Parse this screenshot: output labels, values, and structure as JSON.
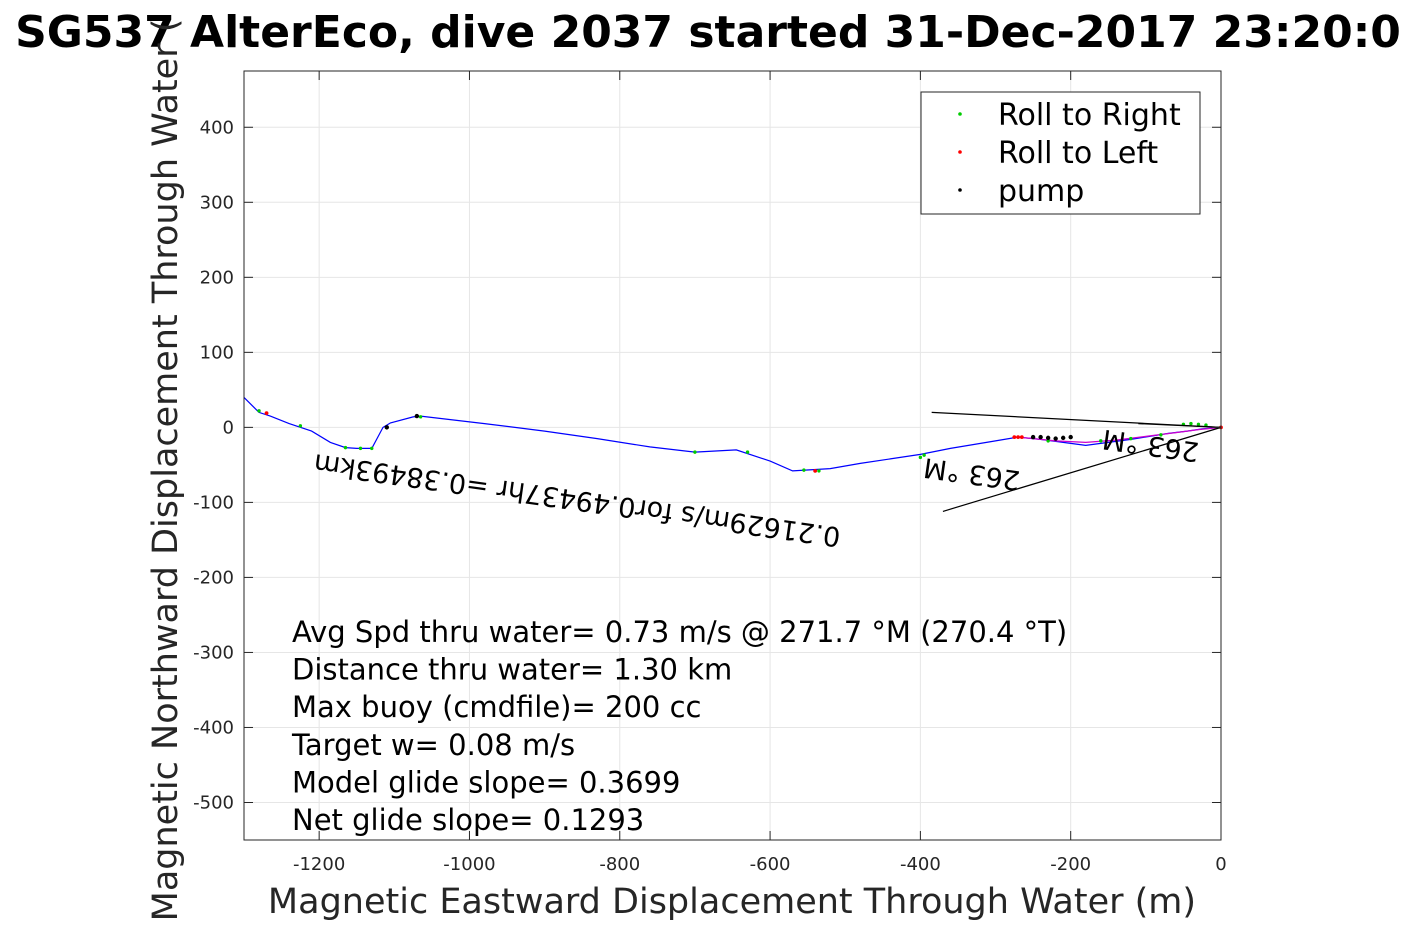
{
  "chart_data": {
    "type": "line",
    "title": "SG537 AlterEco, dive 2037 started 31-Dec-2017 23:20:0",
    "xlabel": "Magnetic Eastward Displacement Through Water (m)",
    "ylabel": "Magnetic Northward Displacement Through Water (",
    "xlim": [
      -1300,
      0
    ],
    "ylim": [
      -550,
      475
    ],
    "xticks": [
      -1200,
      -1000,
      -800,
      -600,
      -400,
      -200,
      0
    ],
    "yticks": [
      400,
      300,
      200,
      100,
      0,
      -100,
      -200,
      -300,
      -400,
      -500
    ],
    "grid": true,
    "legend_position": "top-right",
    "legend": [
      {
        "label": "Roll to Right",
        "color": "#00cc00"
      },
      {
        "label": "Roll to Left",
        "color": "#ff0000"
      },
      {
        "label": "pump",
        "color": "#000000"
      }
    ],
    "track_color": "#0000ff",
    "track": {
      "x": [
        0,
        -25,
        -45,
        -70,
        -95,
        -120,
        -150,
        -180,
        -210,
        -240,
        -270,
        -300,
        -330,
        -360,
        -400,
        -440,
        -480,
        -520,
        -570,
        -600,
        -645,
        -700,
        -760,
        -830,
        -900,
        -980,
        -1065,
        -1075,
        -1105,
        -1115,
        -1130,
        -1150,
        -1165,
        -1185,
        -1210,
        -1240,
        -1265,
        -1280,
        -1300
      ],
      "y": [
        0,
        -2,
        -5,
        -8,
        -12,
        -16,
        -20,
        -24,
        -20,
        -16,
        -13,
        -18,
        -23,
        -28,
        -36,
        -42,
        -48,
        -55,
        -58,
        -45,
        -30,
        -33,
        -26,
        -15,
        -5,
        5,
        15,
        14,
        6,
        0,
        -28,
        -28,
        -27,
        -20,
        -5,
        5,
        15,
        20,
        40
      ]
    },
    "secondary_track": {
      "color": "#cc00cc",
      "x": [
        0,
        -30,
        -60,
        -100,
        -140,
        -180,
        -220,
        -260,
        -275
      ],
      "y": [
        0,
        -3,
        -7,
        -12,
        -17,
        -20,
        -18,
        -14,
        -13
      ]
    },
    "roll_right": {
      "x": [
        -20,
        -30,
        -40,
        -50,
        -80,
        -120,
        -160,
        -230,
        -395,
        -400,
        -535,
        -555,
        -630,
        -700,
        -1065,
        -1130,
        -1145,
        -1165,
        -1225,
        -1280
      ],
      "y": [
        3,
        4,
        5,
        4,
        -10,
        -15,
        -18,
        -18,
        -37,
        -40,
        -58,
        -57,
        -33,
        -33,
        14,
        -28,
        -28,
        -27,
        2,
        22
      ]
    },
    "roll_left": {
      "x": [
        0,
        -265,
        -270,
        -275,
        -1270,
        -540
      ],
      "y": [
        0,
        -13,
        -13,
        -13,
        19,
        -58
      ]
    },
    "pump": {
      "x": [
        -200,
        -210,
        -220,
        -230,
        -240,
        -250,
        -1110,
        -1070
      ],
      "y": [
        -13,
        -14,
        -15,
        -14,
        -13,
        -13,
        0,
        15
      ]
    },
    "annotation_lines": [
      {
        "x": [
          0,
          -385
        ],
        "y": [
          0,
          20
        ]
      },
      {
        "x": [
          0,
          -370
        ],
        "y": [
          0,
          -112
        ]
      },
      {
        "x": [
          0,
          -110
        ],
        "y": [
          0,
          5
        ]
      }
    ],
    "annotations": [
      {
        "text": "0.21629m/s for0.49437hr =0.38493km",
        "x": -855,
        "y": -85,
        "rotation_deg": 188
      },
      {
        "text": "263 °M",
        "x": -330,
        "y": -50,
        "rotation_deg": 188
      },
      {
        "text": "263 °M",
        "x": -92,
        "y": -12,
        "rotation_deg": 188
      }
    ],
    "stats": [
      "Avg Spd thru water=  0.73 m/s @ 271.7 °M (270.4 °T)",
      "Distance thru water=  1.30 km",
      "Max buoy (cmdfile)= 200 cc",
      "Target w= 0.08 m/s",
      "Model glide slope= 0.3699",
      "Net glide slope= 0.1293"
    ]
  }
}
